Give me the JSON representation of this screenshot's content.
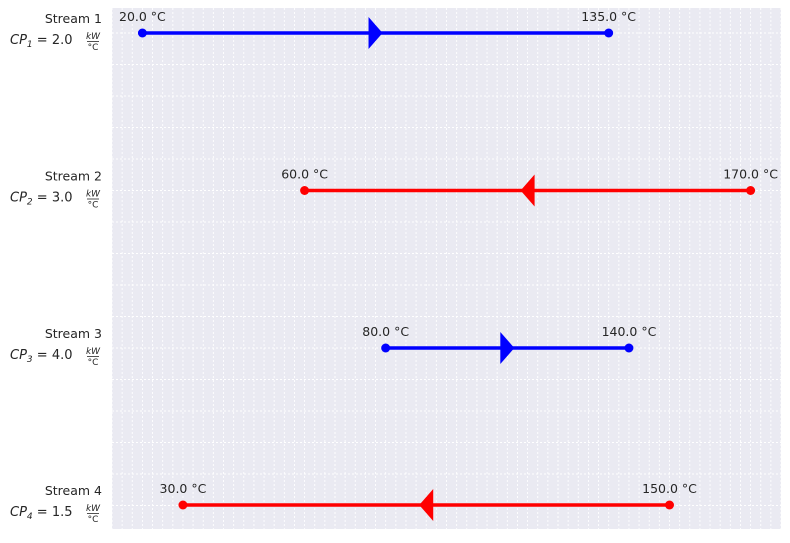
{
  "chart_data": {
    "type": "stream-diagram",
    "xlim": [
      12.5,
      177.5
    ],
    "grid": true,
    "hot_color": "#ff0000",
    "cold_color": "#0000ff",
    "plot_background": "#eaeaf2",
    "streams": [
      {
        "label": "Stream 1",
        "cp_text": "CP_1 = 2.0 kW/°C",
        "cp_index": "1",
        "cp_value": "2.0",
        "kind": "cold",
        "t_start": 20.0,
        "t_end": 135.0,
        "start_label": "20.0 °C",
        "end_label": "135.0 °C"
      },
      {
        "label": "Stream 2",
        "cp_text": "CP_2 = 3.0 kW/°C",
        "cp_index": "2",
        "cp_value": "3.0",
        "kind": "hot",
        "t_start": 170.0,
        "t_end": 60.0,
        "start_label": "170.0 °C",
        "end_label": "60.0 °C"
      },
      {
        "label": "Stream 3",
        "cp_text": "CP_3 = 4.0 kW/°C",
        "cp_index": "3",
        "cp_value": "4.0",
        "kind": "cold",
        "t_start": 80.0,
        "t_end": 140.0,
        "start_label": "80.0 °C",
        "end_label": "140.0 °C"
      },
      {
        "label": "Stream 4",
        "cp_text": "CP_4 = 1.5 kW/°C",
        "cp_index": "4",
        "cp_value": "1.5",
        "kind": "hot",
        "t_start": 150.0,
        "t_end": 30.0,
        "start_label": "150.0 °C",
        "end_label": "30.0 °C"
      }
    ]
  }
}
